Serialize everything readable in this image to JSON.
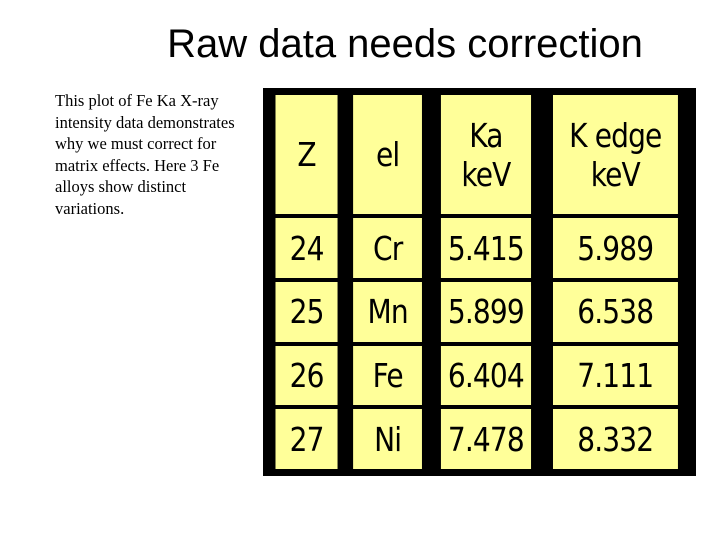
{
  "slide": {
    "title": "Raw data needs correction",
    "body": "This plot of Fe Ka X-ray intensity data demonstrates why we must correct for matrix effects. Here 3 Fe alloys show distinct variations."
  },
  "table": {
    "headers": [
      "Z",
      "el",
      "Ka keV",
      "K edge keV"
    ],
    "rows": [
      [
        "24",
        "Cr",
        "5.415",
        "5.989"
      ],
      [
        "25",
        "Mn",
        "5.899",
        "6.538"
      ],
      [
        "26",
        "Fe",
        "6.404",
        "7.111"
      ],
      [
        "27",
        "Ni",
        "7.478",
        "8.332"
      ]
    ],
    "cell_color": "#ffff99",
    "border_color": "#000000"
  }
}
